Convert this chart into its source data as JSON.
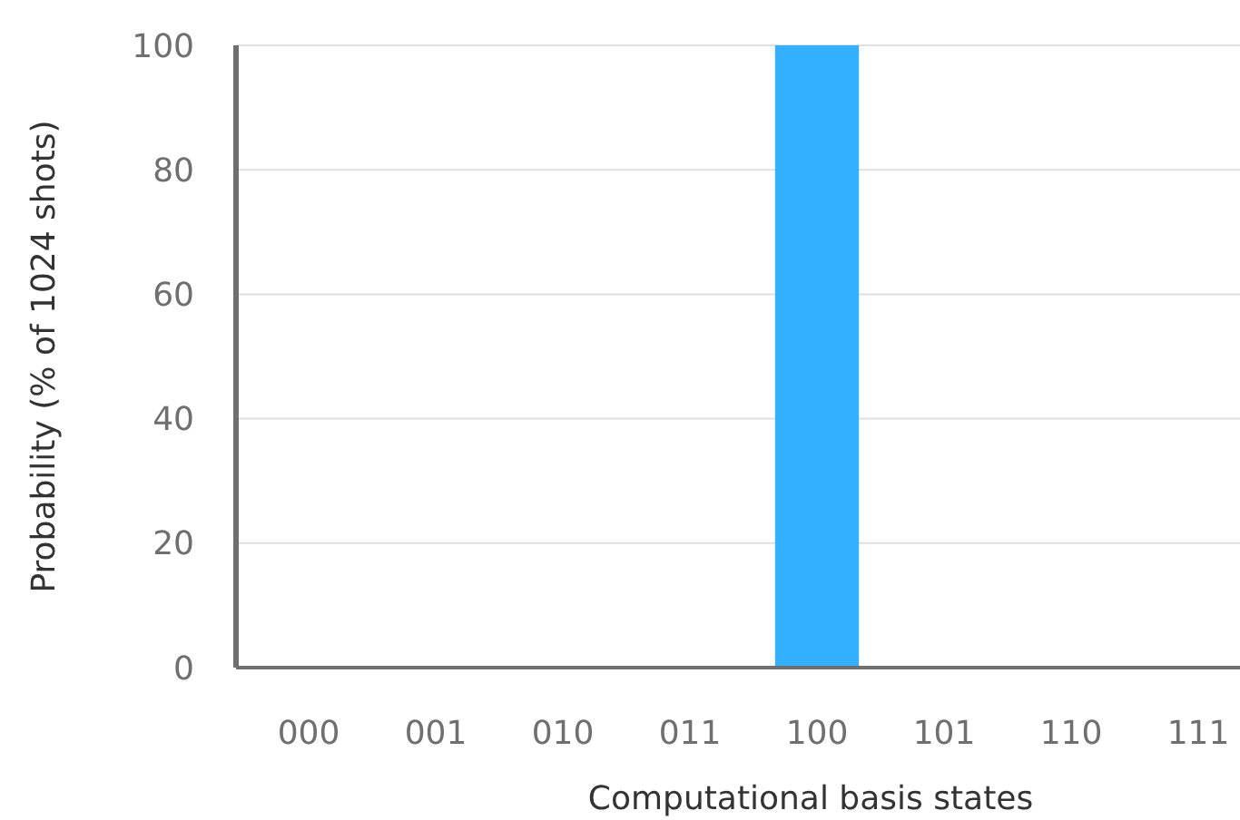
{
  "chart_data": {
    "type": "bar",
    "xlabel": "Computational basis states",
    "ylabel": "Probability (% of 1024 shots)",
    "categories": [
      "000",
      "001",
      "010",
      "011",
      "100",
      "101",
      "110",
      "111"
    ],
    "values": [
      0,
      0,
      0,
      0,
      100,
      0,
      0,
      0
    ],
    "color": "#33b1ff",
    "ylim": [
      0,
      100
    ],
    "yticks": [
      0,
      20,
      40,
      60,
      80,
      100
    ],
    "grid": "y"
  }
}
